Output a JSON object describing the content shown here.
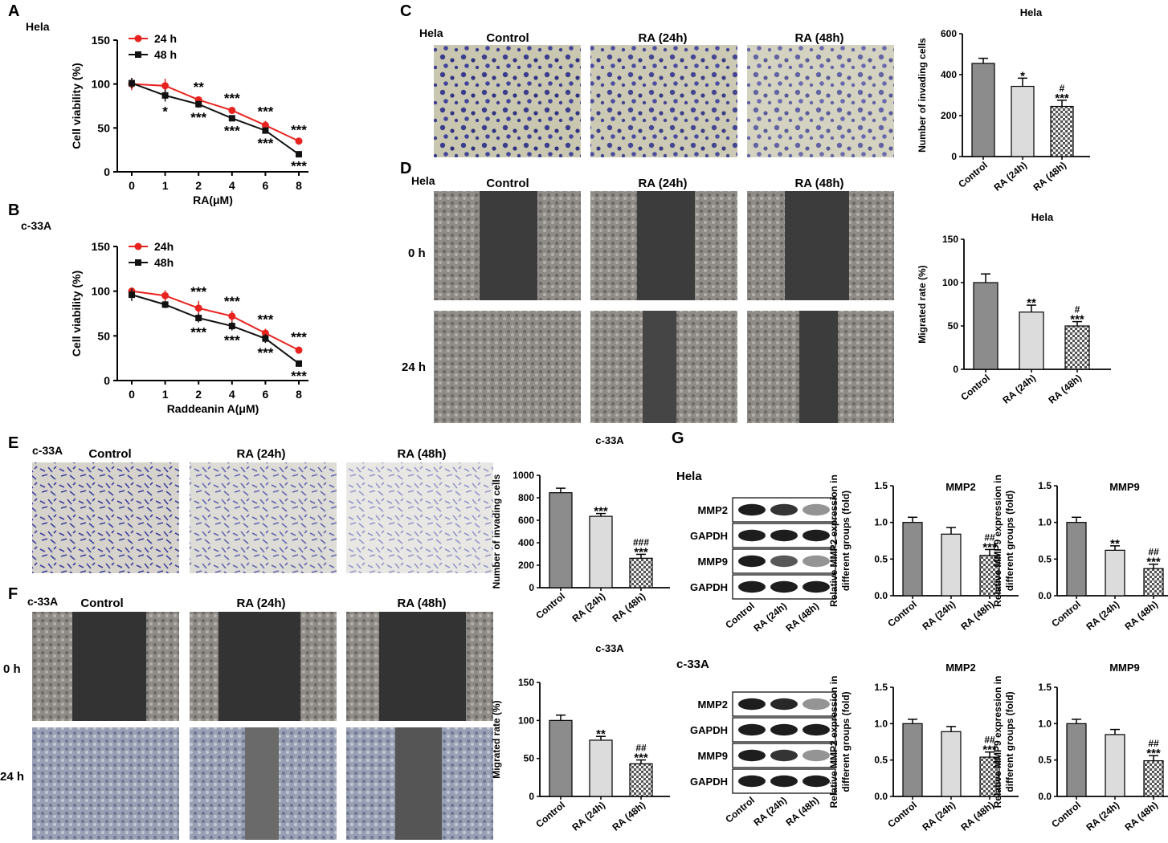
{
  "panels": {
    "A": {
      "letter": "A",
      "cell": "Hela"
    },
    "B": {
      "letter": "B",
      "cell": "c-33A"
    },
    "C": {
      "letter": "C",
      "cell": "Hela",
      "conditions": [
        "Control",
        "RA (24h)",
        "RA (48h)"
      ]
    },
    "D": {
      "letter": "D",
      "cell": "Hela",
      "conditions": [
        "Control",
        "RA (24h)",
        "RA (48h)"
      ],
      "rows": [
        "0 h",
        "24 h"
      ]
    },
    "E": {
      "letter": "E",
      "cell": "c-33A",
      "conditions": [
        "Control",
        "RA (24h)",
        "RA (48h)"
      ]
    },
    "F": {
      "letter": "F",
      "cell": "c-33A",
      "conditions": [
        "Control",
        "RA (24h)",
        "RA (48h)"
      ],
      "rows": [
        "0 h",
        "24 h"
      ]
    },
    "G": {
      "letter": "G",
      "cells": [
        "Hela",
        "c-33A"
      ],
      "blot_rows": [
        "MMP2",
        "GAPDH",
        "MMP9",
        "GAPDH"
      ],
      "blot_lanes": [
        "Control",
        "RA (24h)",
        "RA (48h)"
      ]
    }
  },
  "colors": {
    "red": "#e8231f",
    "black": "#111111",
    "bar_dark": "#8c8c8c",
    "bar_light": "#dcdcdc",
    "bar_check": "#6e6e6e"
  },
  "chart_data": [
    {
      "id": "A",
      "type": "line",
      "title": "",
      "xlabel": "RA(μM)",
      "ylabel": "Cell viability (%)",
      "x": [
        "0",
        "1",
        "2",
        "4",
        "6",
        "8"
      ],
      "ylim": [
        0,
        150
      ],
      "yticks": [
        "0",
        "50",
        "100",
        "150"
      ],
      "series": [
        {
          "name": "24 h",
          "color": "#e8231f",
          "values": [
            100,
            98,
            82,
            70,
            53,
            35
          ],
          "err": [
            7,
            8,
            4,
            3,
            5,
            2
          ],
          "sig": [
            "",
            "",
            "**",
            "***",
            "***",
            "***"
          ]
        },
        {
          "name": "48 h",
          "color": "#111111",
          "values": [
            101,
            87,
            77,
            61,
            47,
            20
          ],
          "err": [
            6,
            7,
            4,
            3,
            3,
            2
          ],
          "sig": [
            "",
            "*",
            "***",
            "***",
            "***",
            "***"
          ]
        }
      ]
    },
    {
      "id": "B",
      "type": "line",
      "title": "",
      "xlabel": "Raddeanin A(μM)",
      "ylabel": "Cell viability (%)",
      "x": [
        "0",
        "1",
        "2",
        "4",
        "6",
        "8"
      ],
      "ylim": [
        0,
        150
      ],
      "yticks": [
        "0",
        "50",
        "100",
        "150"
      ],
      "series": [
        {
          "name": "24h",
          "color": "#e8231f",
          "values": [
            100,
            95,
            81,
            72,
            53,
            34
          ],
          "err": [
            4,
            6,
            8,
            6,
            5,
            4
          ],
          "sig": [
            "",
            "",
            "***",
            "***",
            "***",
            "***"
          ]
        },
        {
          "name": "48h",
          "color": "#111111",
          "values": [
            96,
            85,
            70,
            61,
            47,
            19
          ],
          "err": [
            7,
            4,
            5,
            5,
            5,
            3
          ],
          "sig": [
            "",
            "",
            "***",
            "***",
            "***",
            "***"
          ]
        }
      ]
    },
    {
      "id": "C",
      "type": "bar",
      "title": "Hela",
      "ylabel": "Number of invading cells",
      "categories": [
        "Control",
        "RA (24h)",
        "RA (48h)"
      ],
      "values": [
        455,
        343,
        245
      ],
      "err": [
        25,
        40,
        30
      ],
      "ylim": [
        0,
        600
      ],
      "yticks": [
        "0",
        "200",
        "400",
        "600"
      ],
      "sig": [
        "",
        "*",
        "#\n***"
      ]
    },
    {
      "id": "D",
      "type": "bar",
      "title": "Hela",
      "ylabel": "Migrated rate (%)",
      "categories": [
        "Control",
        "RA (24h)",
        "RA (48h)"
      ],
      "values": [
        100,
        66,
        50
      ],
      "err": [
        10,
        8,
        5
      ],
      "ylim": [
        0,
        150
      ],
      "yticks": [
        "0",
        "50",
        "100",
        "150"
      ],
      "sig": [
        "",
        "**",
        "#\n***"
      ]
    },
    {
      "id": "E",
      "type": "bar",
      "title": "c-33A",
      "ylabel": "Number of invading cells",
      "categories": [
        "Control",
        "RA (24h)",
        "RA (48h)"
      ],
      "values": [
        845,
        635,
        262
      ],
      "err": [
        40,
        25,
        35
      ],
      "ylim": [
        0,
        1000
      ],
      "yticks": [
        "0",
        "200",
        "400",
        "600",
        "800",
        "1000"
      ],
      "sig": [
        "",
        "***",
        "###\n***"
      ]
    },
    {
      "id": "F",
      "type": "bar",
      "title": "c-33A",
      "ylabel": "Migrated rate (%)",
      "categories": [
        "Control",
        "RA (24h)",
        "RA (48h)"
      ],
      "values": [
        100,
        74,
        43
      ],
      "err": [
        7,
        5,
        5
      ],
      "ylim": [
        0,
        150
      ],
      "yticks": [
        "0",
        "50",
        "100",
        "150"
      ],
      "sig": [
        "",
        "**",
        "##\n***"
      ]
    },
    {
      "id": "G1",
      "type": "bar",
      "title": "MMP2",
      "ylabel": "Relative MMP2 expression in\ndifferent groups (fold)",
      "categories": [
        "Control",
        "RA (24h)",
        "RA (48h)"
      ],
      "values": [
        1.0,
        0.84,
        0.55
      ],
      "err": [
        0.07,
        0.09,
        0.08
      ],
      "ylim": [
        0,
        1.5
      ],
      "yticks": [
        "0.0",
        "0.5",
        "1.0",
        "1.5"
      ],
      "sig": [
        "",
        "",
        "##\n***"
      ]
    },
    {
      "id": "G2",
      "type": "bar",
      "title": "MMP9",
      "ylabel": "Relative MMP9 expression in\ndifferent groups (fold)",
      "categories": [
        "Control",
        "RA (24h)",
        "RA (48h)"
      ],
      "values": [
        1.0,
        0.62,
        0.37
      ],
      "err": [
        0.07,
        0.06,
        0.06
      ],
      "ylim": [
        0,
        1.5
      ],
      "yticks": [
        "0.0",
        "0.5",
        "1.0",
        "1.5"
      ],
      "sig": [
        "",
        "**",
        "##\n***"
      ]
    },
    {
      "id": "G3",
      "type": "bar",
      "title": "MMP2",
      "ylabel": "Relative MMP2 expression in\ndifferent groups (fold)",
      "categories": [
        "Control",
        "RA (24h)",
        "RA (48h)"
      ],
      "values": [
        1.0,
        0.89,
        0.54
      ],
      "err": [
        0.06,
        0.07,
        0.07
      ],
      "ylim": [
        0,
        1.5
      ],
      "yticks": [
        "0.0",
        "0.5",
        "1.0",
        "1.5"
      ],
      "sig": [
        "",
        "",
        "##\n***"
      ]
    },
    {
      "id": "G4",
      "type": "bar",
      "title": "MMP9",
      "ylabel": "Relative MMP9 expression in\ndifferent groups (fold)",
      "categories": [
        "Control",
        "RA (24h)",
        "RA (48h)"
      ],
      "values": [
        1.0,
        0.85,
        0.49
      ],
      "err": [
        0.06,
        0.07,
        0.07
      ],
      "ylim": [
        0,
        1.5
      ],
      "yticks": [
        "0.0",
        "0.5",
        "1.0",
        "1.5"
      ],
      "sig": [
        "",
        "",
        "##\n***"
      ]
    }
  ]
}
